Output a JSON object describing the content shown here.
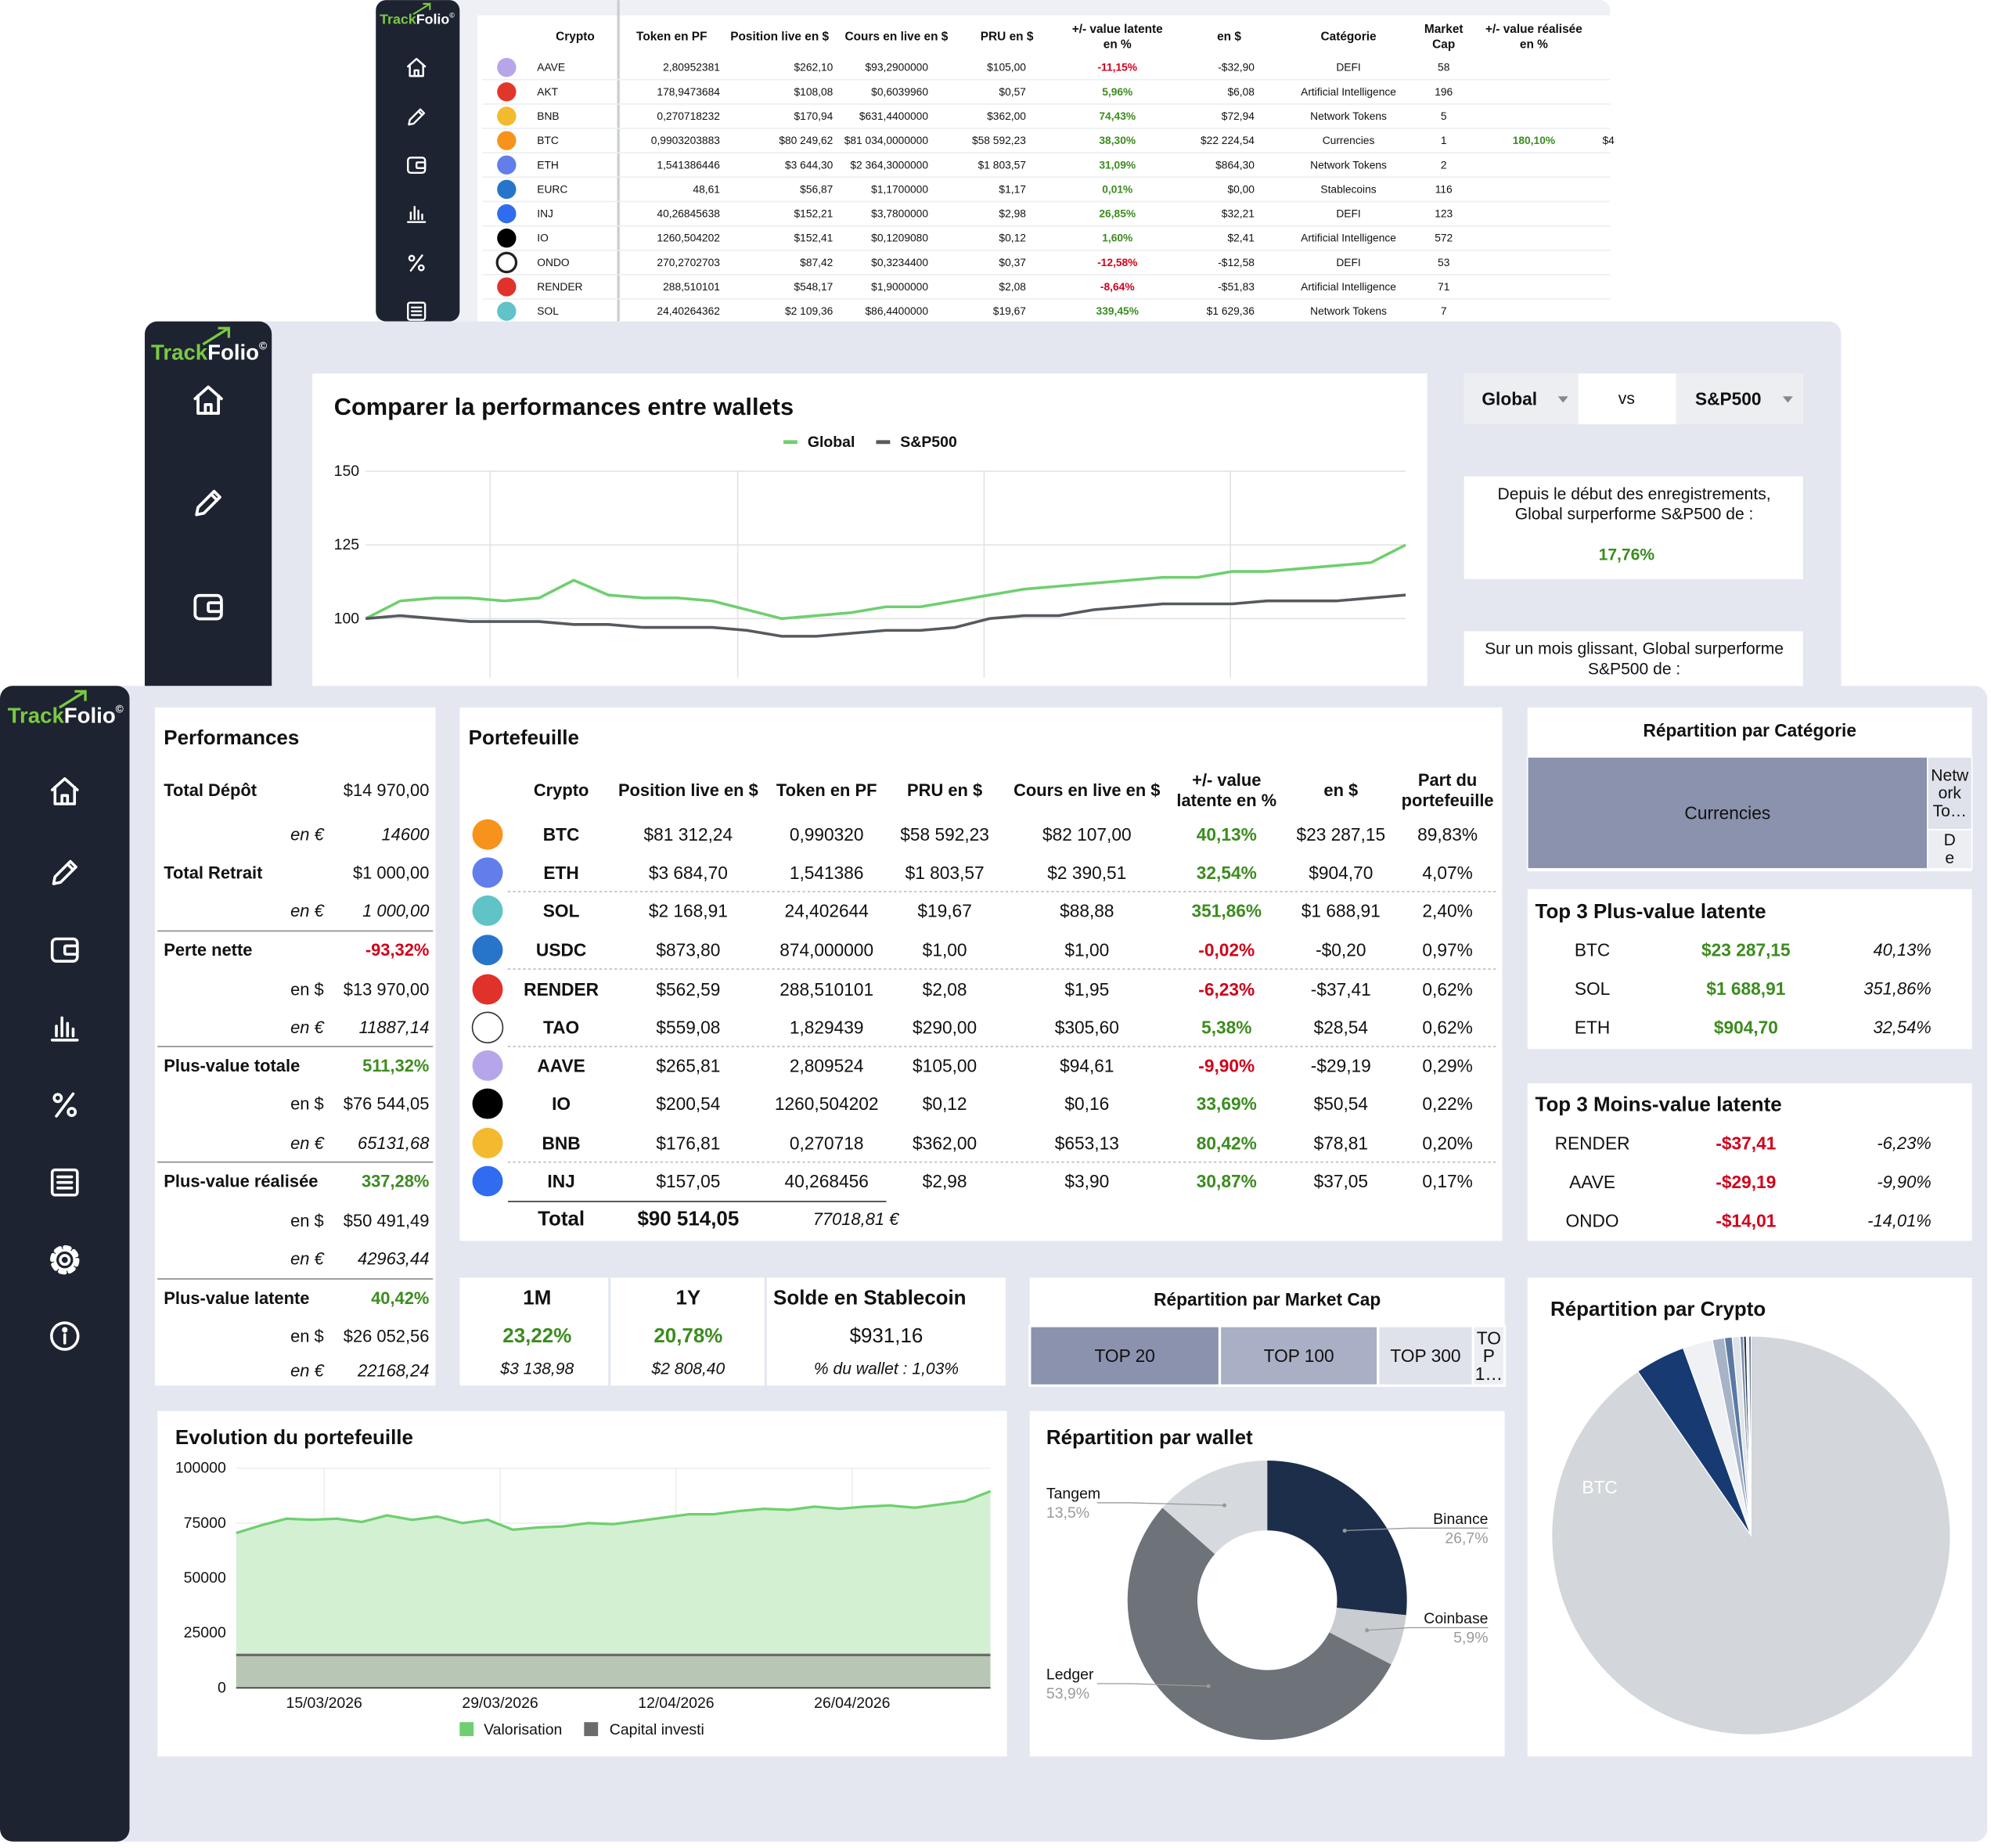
{
  "brand": {
    "track": "Track",
    "folio": "Folio",
    "mark": "©"
  },
  "crypto_table": {
    "headers": [
      [
        "Crypto"
      ],
      [
        "Token en PF"
      ],
      [
        "Position live en $"
      ],
      [
        "Cours en live en $"
      ],
      [
        "PRU en $"
      ],
      [
        "+/- value latente",
        "en %"
      ],
      [
        "en $"
      ],
      [
        "Catégorie"
      ],
      [
        "Market",
        "Cap"
      ],
      [
        "+/- value réalisée",
        "en %"
      ]
    ],
    "rows": [
      [
        "AAVE",
        "2,80952381",
        "$262,10",
        "$93,2900000",
        "$105,00",
        "-11,15%",
        "-$32,90",
        "DEFI",
        "58"
      ],
      [
        "AKT",
        "178,9473684",
        "$108,08",
        "$0,6039960",
        "$0,57",
        "5,96%",
        "$6,08",
        "Artificial Intelligence",
        "196"
      ],
      [
        "BNB",
        "0,270718232",
        "$170,94",
        "$631,4400000",
        "$362,00",
        "74,43%",
        "$72,94",
        "Network Tokens",
        "5"
      ],
      [
        "BTC",
        "0,9903203883",
        "$80 249,62",
        "$81 034,0000000",
        "$58 592,23",
        "38,30%",
        "$22 224,54",
        "Currencies",
        "1",
        "180,10%",
        "$4"
      ],
      [
        "ETH",
        "1,541386446",
        "$3 644,30",
        "$2 364,3000000",
        "$1 803,57",
        "31,09%",
        "$864,30",
        "Network Tokens",
        "2"
      ],
      [
        "EURC",
        "48,61",
        "$56,87",
        "$1,1700000",
        "$1,17",
        "0,01%",
        "$0,00",
        "Stablecoins",
        "116"
      ],
      [
        "INJ",
        "40,26845638",
        "$152,21",
        "$3,7800000",
        "$2,98",
        "26,85%",
        "$32,21",
        "DEFI",
        "123"
      ],
      [
        "IO",
        "1260,504202",
        "$152,41",
        "$0,1209080",
        "$0,12",
        "1,60%",
        "$2,41",
        "Artificial Intelligence",
        "572"
      ],
      [
        "ONDO",
        "270,2702703",
        "$87,42",
        "$0,3234400",
        "$0,37",
        "-12,58%",
        "-$12,58",
        "DEFI",
        "53"
      ],
      [
        "RENDER",
        "288,510101",
        "$548,17",
        "$1,9000000",
        "$2,08",
        "-8,64%",
        "-$51,83",
        "Artificial Intelligence",
        "71"
      ],
      [
        "SOL",
        "24,40264362",
        "$2 109,36",
        "$86,4400000",
        "$19,67",
        "339,45%",
        "$1 629,36",
        "Network Tokens",
        "7"
      ]
    ]
  },
  "compare_chart": {
    "type": "line",
    "title": "Comparer la performances entre wallets",
    "series": [
      {
        "name": "Global",
        "color": "#6fcf6f",
        "values": [
          100,
          106,
          107,
          107,
          106,
          107,
          113,
          108,
          107,
          107,
          106,
          103,
          100,
          101,
          102,
          104,
          104,
          106,
          108,
          110,
          111,
          112,
          113,
          114,
          114,
          116,
          116,
          117,
          118,
          119,
          125
        ]
      },
      {
        "name": "S&P500",
        "color": "#555a5f",
        "values": [
          100,
          101,
          100,
          99,
          99,
          99,
          98,
          98,
          97,
          97,
          97,
          96,
          94,
          94,
          95,
          96,
          96,
          97,
          100,
          101,
          101,
          103,
          104,
          105,
          105,
          105,
          106,
          106,
          106,
          107,
          108
        ]
      }
    ],
    "ylim": [
      80,
      150
    ],
    "yticks": [
      100,
      125,
      150
    ],
    "grid": true
  },
  "compare_controls": {
    "left": "Global",
    "vs": "vs",
    "right": "S&P500"
  },
  "compare_notes": [
    {
      "lines": [
        "Depuis le début des enregistrements,",
        "Global surperforme S&P500 de :"
      ],
      "value": "17,76%"
    },
    {
      "lines": [
        "Sur un mois glissant, Global surperforme",
        "S&P500 de :"
      ]
    }
  ],
  "performances": {
    "title": "Performances",
    "rows": [
      {
        "label": "Total Dépôt",
        "value": "$14 970,00",
        "kind": "main"
      },
      {
        "label": "en €",
        "value": "14600",
        "kind": "sub",
        "italic": true
      },
      {
        "label": "Total Retrait",
        "value": "$1 000,00",
        "kind": "main"
      },
      {
        "label": "en €",
        "value": "1 000,00",
        "kind": "sub",
        "italic": true
      },
      {
        "label": "Perte nette",
        "value": "-93,32%",
        "kind": "main",
        "tone": "red"
      },
      {
        "label": "en $",
        "value": "$13 970,00",
        "kind": "sub"
      },
      {
        "label": "en €",
        "value": "11887,14",
        "kind": "sub",
        "italic": true
      },
      {
        "label": "Plus-value totale",
        "value": "511,32%",
        "kind": "main",
        "tone": "green"
      },
      {
        "label": "en $",
        "value": "$76 544,05",
        "kind": "sub"
      },
      {
        "label": "en €",
        "value": "65131,68",
        "kind": "sub",
        "italic": true
      },
      {
        "label": "Plus-value réalisée",
        "value": "337,28%",
        "kind": "main",
        "tone": "green"
      },
      {
        "label": "en $",
        "value": "$50 491,49",
        "kind": "sub"
      },
      {
        "label": "en €",
        "value": "42963,44",
        "kind": "sub",
        "italic": true
      },
      {
        "label": "Plus-value latente",
        "value": "40,42%",
        "kind": "main",
        "tone": "green"
      },
      {
        "label": "en $",
        "value": "$26 052,56",
        "kind": "sub"
      },
      {
        "label": "en €",
        "value": "22168,24",
        "kind": "sub",
        "italic": true
      }
    ]
  },
  "portfolio": {
    "title": "Portefeuille",
    "headers": [
      [
        "Crypto"
      ],
      [
        "Position live en $"
      ],
      [
        "Token en PF"
      ],
      [
        "PRU en $"
      ],
      [
        "Cours en live en $"
      ],
      [
        "+/- value",
        "latente en %"
      ],
      [
        "en $"
      ],
      [
        "Part du",
        "portefeuille"
      ]
    ],
    "rows": [
      [
        "BTC",
        "$81 312,24",
        "0,990320",
        "$58 592,23",
        "$82 107,00",
        "40,13%",
        "$23 287,15",
        "89,83%"
      ],
      [
        "ETH",
        "$3 684,70",
        "1,541386",
        "$1 803,57",
        "$2 390,51",
        "32,54%",
        "$904,70",
        "4,07%"
      ],
      [
        "SOL",
        "$2 168,91",
        "24,402644",
        "$19,67",
        "$88,88",
        "351,86%",
        "$1 688,91",
        "2,40%"
      ],
      [
        "USDC",
        "$873,80",
        "874,000000",
        "$1,00",
        "$1,00",
        "-0,02%",
        "-$0,20",
        "0,97%"
      ],
      [
        "RENDER",
        "$562,59",
        "288,510101",
        "$2,08",
        "$1,95",
        "-6,23%",
        "-$37,41",
        "0,62%"
      ],
      [
        "TAO",
        "$559,08",
        "1,829439",
        "$290,00",
        "$305,60",
        "5,38%",
        "$28,54",
        "0,62%"
      ],
      [
        "AAVE",
        "$265,81",
        "2,809524",
        "$105,00",
        "$94,61",
        "-9,90%",
        "-$29,19",
        "0,29%"
      ],
      [
        "IO",
        "$200,54",
        "1260,504202",
        "$0,12",
        "$0,16",
        "33,69%",
        "$50,54",
        "0,22%"
      ],
      [
        "BNB",
        "$176,81",
        "0,270718",
        "$362,00",
        "$653,13",
        "80,42%",
        "$78,81",
        "0,20%"
      ],
      [
        "INJ",
        "$157,05",
        "40,268456",
        "$2,98",
        "$3,90",
        "30,87%",
        "$37,05",
        "0,17%"
      ]
    ],
    "total": {
      "label": "Total",
      "position": "$90 514,05",
      "euro": "77018,81 €"
    }
  },
  "category_split": {
    "type": "treemap",
    "title": "Répartition par Catégorie",
    "labels": [
      [
        "Currencies"
      ],
      [
        "Netw",
        "ork",
        "To…"
      ],
      [
        "D",
        "e"
      ]
    ],
    "values": [
      90,
      6.5,
      3.5
    ],
    "colors": [
      "#8a92ad",
      "#dfe2ea",
      "#eceef3"
    ]
  },
  "top_gains": {
    "title": "Top 3 Plus-value latente",
    "rows": [
      [
        "BTC",
        "$23 287,15",
        "40,13%"
      ],
      [
        "SOL",
        "$1 688,91",
        "351,86%"
      ],
      [
        "ETH",
        "$904,70",
        "32,54%"
      ]
    ]
  },
  "top_losses": {
    "title": "Top 3 Moins-value latente",
    "rows": [
      [
        "RENDER",
        "-$37,41",
        "-6,23%"
      ],
      [
        "AAVE",
        "-$29,19",
        "-9,90%"
      ],
      [
        "ONDO",
        "-$14,01",
        "-14,01%"
      ]
    ]
  },
  "periods": [
    {
      "label": "1M",
      "pct": "23,22%",
      "amount": "$3 138,98"
    },
    {
      "label": "1Y",
      "pct": "20,78%",
      "amount": "$2 808,40"
    }
  ],
  "stablecoin": {
    "title": "Solde en Stablecoin",
    "value": "$931,16",
    "share": "% du wallet : 1,03%"
  },
  "market_cap_split": {
    "type": "treemap",
    "title": "Répartition par Market Cap",
    "labels": [
      [
        "TOP 20"
      ],
      [
        "TOP 100"
      ],
      [
        "TOP 300"
      ],
      [
        "TO",
        "P",
        "1…"
      ]
    ],
    "values": [
      6,
      5,
      3,
      1
    ],
    "colors": [
      "#8a92ad",
      "#a9afc4",
      "#dfe2ea",
      "#eceef3"
    ]
  },
  "evolution_chart": {
    "type": "area",
    "title": "Evolution du portefeuille",
    "x": [
      "08/03/2026",
      "10/03/2026",
      "12/03/2026",
      "14/03/2026",
      "16/03/2026",
      "18/03/2026",
      "20/03/2026",
      "22/03/2026",
      "24/03/2026",
      "26/03/2026",
      "28/03/2026",
      "30/03/2026",
      "01/04/2026",
      "03/04/2026",
      "05/04/2026",
      "07/04/2026",
      "09/04/2026",
      "11/04/2026",
      "13/04/2026",
      "15/04/2026",
      "17/04/2026",
      "19/04/2026",
      "21/04/2026",
      "23/04/2026",
      "25/04/2026",
      "27/04/2026",
      "29/04/2026",
      "01/05/2026",
      "03/05/2026",
      "05/05/2026",
      "07/05/2026"
    ],
    "series": [
      {
        "name": "Valorisation",
        "color": "#6fcf6f",
        "values": [
          70500,
          74000,
          77000,
          76500,
          77000,
          75500,
          78500,
          76500,
          78000,
          75000,
          76500,
          72000,
          73000,
          73500,
          75000,
          74500,
          76000,
          77500,
          79000,
          79000,
          80500,
          81500,
          81000,
          82500,
          81500,
          82500,
          83000,
          82000,
          83500,
          85000,
          89500
        ]
      },
      {
        "name": "Capital investi",
        "color": "#6b6b6b",
        "values": [
          14970,
          14970,
          14970,
          14970,
          14970,
          14970,
          14970,
          14970,
          14970,
          14970,
          14970,
          14970,
          14970,
          14970,
          14970,
          14970,
          14970,
          14970,
          14970,
          14970,
          14970,
          14970,
          14970,
          14970,
          14970,
          14970,
          14970,
          14970,
          14970,
          14970,
          14970
        ]
      }
    ],
    "xlim": [
      "08/03/2026",
      "07/05/2026"
    ],
    "xticks": [
      "15/03/2026",
      "29/03/2026",
      "12/04/2026",
      "26/04/2026"
    ],
    "ylim": [
      0,
      100000
    ],
    "yticks": [
      0,
      25000,
      50000,
      75000,
      100000
    ],
    "grid": true
  },
  "wallet_chart": {
    "type": "donut",
    "title": "Répartition par wallet",
    "categories": [
      "Binance",
      "Coinbase",
      "Ledger",
      "Tangem"
    ],
    "values": [
      26.7,
      5.9,
      53.9,
      13.5
    ],
    "value_labels": [
      "26,7%",
      "5,9%",
      "53,9%",
      "13,5%"
    ],
    "colors": [
      "#1c2e4a",
      "#c9ccd0",
      "#6e737a",
      "#d6d9dd"
    ]
  },
  "crypto_chart": {
    "type": "pie",
    "title": "Répartition par Crypto",
    "categories": [
      "BTC",
      null,
      null,
      null,
      null,
      null,
      null,
      null,
      null,
      null
    ],
    "values": [
      89.83,
      4.07,
      2.4,
      0.97,
      0.62,
      0.62,
      0.29,
      0.22,
      0.2,
      0.17
    ],
    "colors": [
      "#d3d6da",
      "#173a73",
      "#f0f1f4",
      "#a7b3c7",
      "#5b7aa3",
      "#dfe3ea",
      "#7d8fa9",
      "#1d2b45",
      "#eef0f3",
      "#2d4466"
    ]
  }
}
